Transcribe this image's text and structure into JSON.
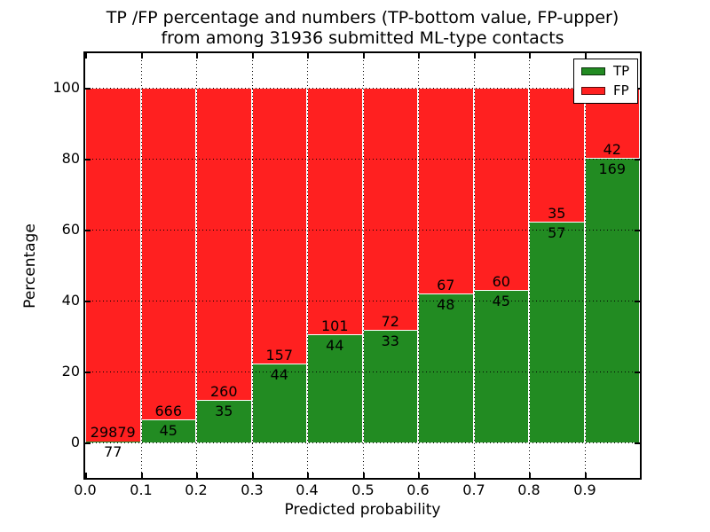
{
  "figure_title": {
    "line1": "TP /FP percentage and numbers (TP-bottom value, FP-upper)",
    "line2": "from among 31936 submitted ML-type contacts"
  },
  "chart_data": {
    "type": "bar",
    "stacked": true,
    "orientation": "vertical",
    "title": "TP /FP percentage and numbers (TP-bottom value, FP-upper)\nfrom among 31936 submitted ML-type contacts",
    "total_submitted_contacts": 31936,
    "xlabel": "Predicted probability",
    "ylabel": "Percentage",
    "xlim": [
      0.0,
      1.0
    ],
    "ylim": [
      -10,
      110
    ],
    "bar_width": 0.1,
    "x_tick_labels": [
      "0.0",
      "0.1",
      "0.2",
      "0.3",
      "0.4",
      "0.5",
      "0.6",
      "0.7",
      "0.8",
      "0.9"
    ],
    "y_tick_values": [
      0,
      20,
      40,
      60,
      80,
      100
    ],
    "grid": {
      "style": "dotted",
      "color": "#000000",
      "x_lines": [
        0.1,
        0.2,
        0.3,
        0.4,
        0.5,
        0.6,
        0.7,
        0.8,
        0.9
      ],
      "y_lines": [
        0,
        20,
        40,
        60,
        80,
        100
      ]
    },
    "bins": [
      {
        "x_range": [
          0.0,
          0.1
        ],
        "tp_count": 77,
        "fp_count": 29879,
        "tp_pct": 0.26,
        "fp_pct": 99.74
      },
      {
        "x_range": [
          0.1,
          0.2
        ],
        "tp_count": 45,
        "fp_count": 666,
        "tp_pct": 6.33,
        "fp_pct": 93.67
      },
      {
        "x_range": [
          0.2,
          0.3
        ],
        "tp_count": 35,
        "fp_count": 260,
        "tp_pct": 11.86,
        "fp_pct": 88.14
      },
      {
        "x_range": [
          0.3,
          0.4
        ],
        "tp_count": 44,
        "fp_count": 157,
        "tp_pct": 21.89,
        "fp_pct": 78.11
      },
      {
        "x_range": [
          0.4,
          0.5
        ],
        "tp_count": 44,
        "fp_count": 101,
        "tp_pct": 30.34,
        "fp_pct": 69.66
      },
      {
        "x_range": [
          0.5,
          0.6
        ],
        "tp_count": 33,
        "fp_count": 72,
        "tp_pct": 31.43,
        "fp_pct": 68.57
      },
      {
        "x_range": [
          0.6,
          0.7
        ],
        "tp_count": 48,
        "fp_count": 67,
        "tp_pct": 41.74,
        "fp_pct": 58.26
      },
      {
        "x_range": [
          0.7,
          0.8
        ],
        "tp_count": 45,
        "fp_count": 60,
        "tp_pct": 42.86,
        "fp_pct": 57.14
      },
      {
        "x_range": [
          0.8,
          0.9
        ],
        "tp_count": 57,
        "fp_count": 35,
        "tp_pct": 61.96,
        "fp_pct": 38.04
      },
      {
        "x_range": [
          0.9,
          1.0
        ],
        "tp_count": 169,
        "fp_count": 42,
        "tp_pct": 80.09,
        "fp_pct": 19.91
      }
    ],
    "series": [
      {
        "name": "TP",
        "color": "#228b22",
        "counts": [
          77,
          45,
          35,
          44,
          44,
          33,
          48,
          45,
          57,
          169
        ],
        "pct": [
          0.26,
          6.33,
          11.86,
          21.89,
          30.34,
          31.43,
          41.74,
          42.86,
          61.96,
          80.09
        ]
      },
      {
        "name": "FP",
        "color": "#ff2020",
        "counts": [
          29879,
          666,
          260,
          157,
          101,
          72,
          67,
          60,
          35,
          42
        ],
        "pct": [
          99.74,
          93.67,
          88.14,
          78.11,
          69.66,
          68.57,
          58.26,
          57.14,
          38.04,
          19.91
        ]
      }
    ],
    "legend": {
      "position": "upper right",
      "entries": [
        {
          "label": "TP",
          "color": "#228b22"
        },
        {
          "label": "FP",
          "color": "#ff2020"
        }
      ]
    }
  }
}
